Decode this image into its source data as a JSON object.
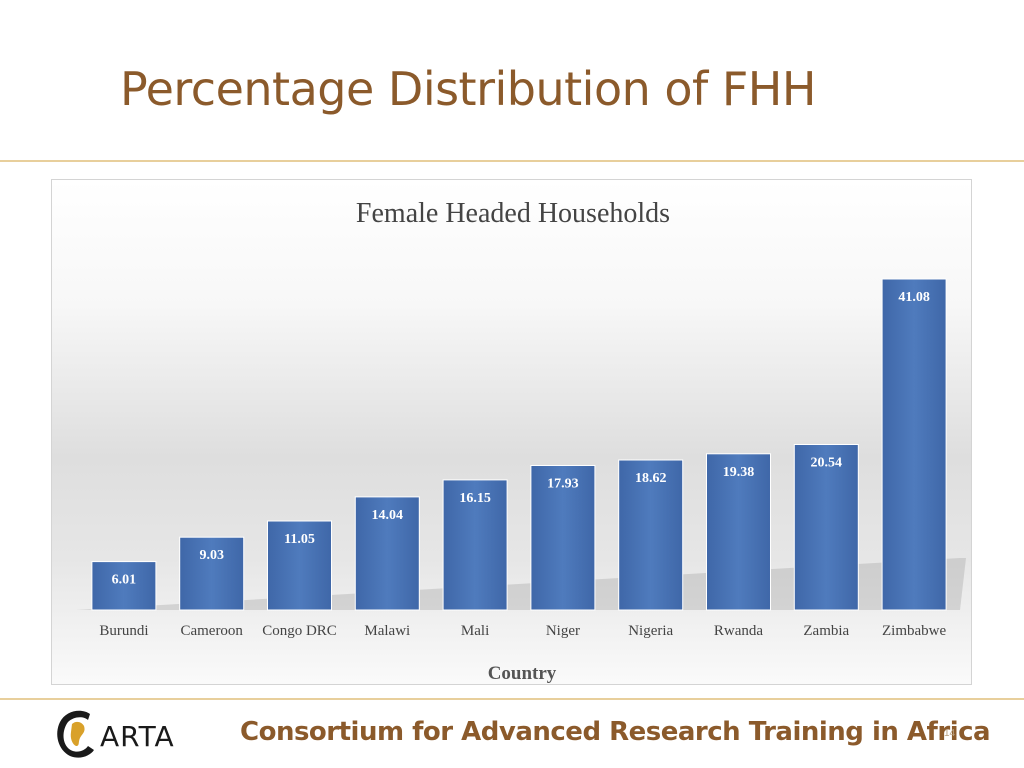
{
  "slide": {
    "title": "Percentage Distribution of FHH",
    "footer": "Consortium for Advanced Research Training in Africa",
    "logo_text": "ARTA",
    "page_number": "14"
  },
  "colors": {
    "title": "#8b5a2b",
    "bar": "#4a74b5",
    "bar_dark": "#3d63a0",
    "text": "#333333"
  },
  "chart_data": {
    "type": "bar",
    "title": "Female Headed Households",
    "xlabel": "Country",
    "ylabel": "",
    "categories": [
      "Burundi",
      "Cameroon",
      "Congo DRC",
      "Malawi",
      "Mali",
      "Niger",
      "Nigeria",
      "Rwanda",
      "Zambia",
      "Zimbabwe"
    ],
    "values": [
      6.01,
      9.03,
      11.05,
      14.04,
      16.15,
      17.93,
      18.62,
      19.38,
      20.54,
      41.08
    ],
    "value_labels": [
      "6.01",
      "9.03",
      "11.05",
      "14.04",
      "16.15",
      "17.93",
      "18.62",
      "19.38",
      "20.54",
      "41.08"
    ],
    "ylim": [
      0,
      41.08
    ],
    "grid": false,
    "legend": "none"
  }
}
